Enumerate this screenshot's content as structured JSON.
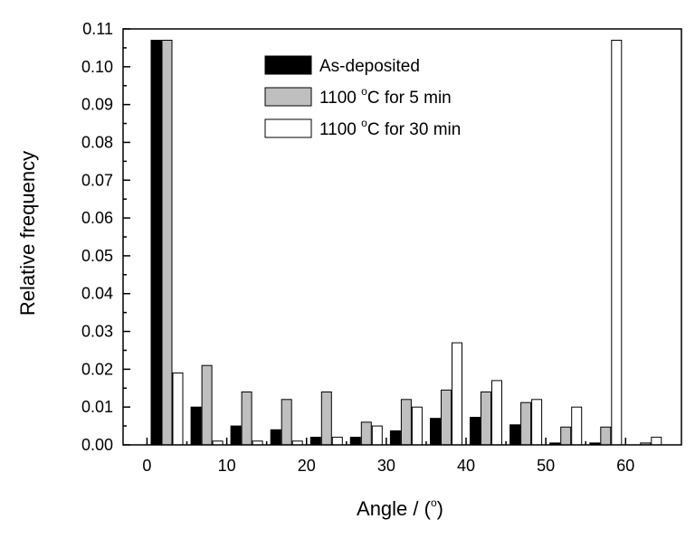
{
  "chart_data": {
    "type": "bar",
    "xlabel_main": "Angle / (",
    "xlabel_sup": "o",
    "xlabel_end": ")",
    "ylabel": "Relative frequency",
    "xlim": [
      -3,
      67
    ],
    "ylim": [
      0,
      0.11
    ],
    "xticks": [
      0,
      10,
      20,
      30,
      40,
      50,
      60
    ],
    "yticks": [
      "0.00",
      "0.01",
      "0.02",
      "0.03",
      "0.04",
      "0.05",
      "0.06",
      "0.07",
      "0.08",
      "0.09",
      "0.10",
      "0.11"
    ],
    "x": [
      2.5,
      7.5,
      12.5,
      17.5,
      22.5,
      27.5,
      32.5,
      37.5,
      42.5,
      47.5,
      52.5,
      57.5,
      62.5
    ],
    "series": [
      {
        "name_main": "As-deposited",
        "name_sup": "",
        "name_end": "",
        "color": "#000000",
        "values": [
          0.107,
          0.01,
          0.005,
          0.004,
          0.002,
          0.002,
          0.0037,
          0.007,
          0.0073,
          0.0053,
          0.0005,
          0.0005,
          0.0
        ]
      },
      {
        "name_main": "1100 ",
        "name_sup": "o",
        "name_end": "C for 5 min",
        "color": "#bfbfbf",
        "values": [
          0.107,
          0.021,
          0.014,
          0.012,
          0.014,
          0.006,
          0.012,
          0.0145,
          0.014,
          0.0112,
          0.0047,
          0.0047,
          0.0005
        ]
      },
      {
        "name_main": "1100 ",
        "name_sup": "o",
        "name_end": "C for 30 min",
        "color": "#ffffff",
        "values": [
          0.019,
          0.001,
          0.001,
          0.001,
          0.002,
          0.005,
          0.01,
          0.027,
          0.017,
          0.012,
          0.01,
          0.107,
          0.002
        ]
      }
    ],
    "grid": false,
    "legend": "top-center"
  }
}
